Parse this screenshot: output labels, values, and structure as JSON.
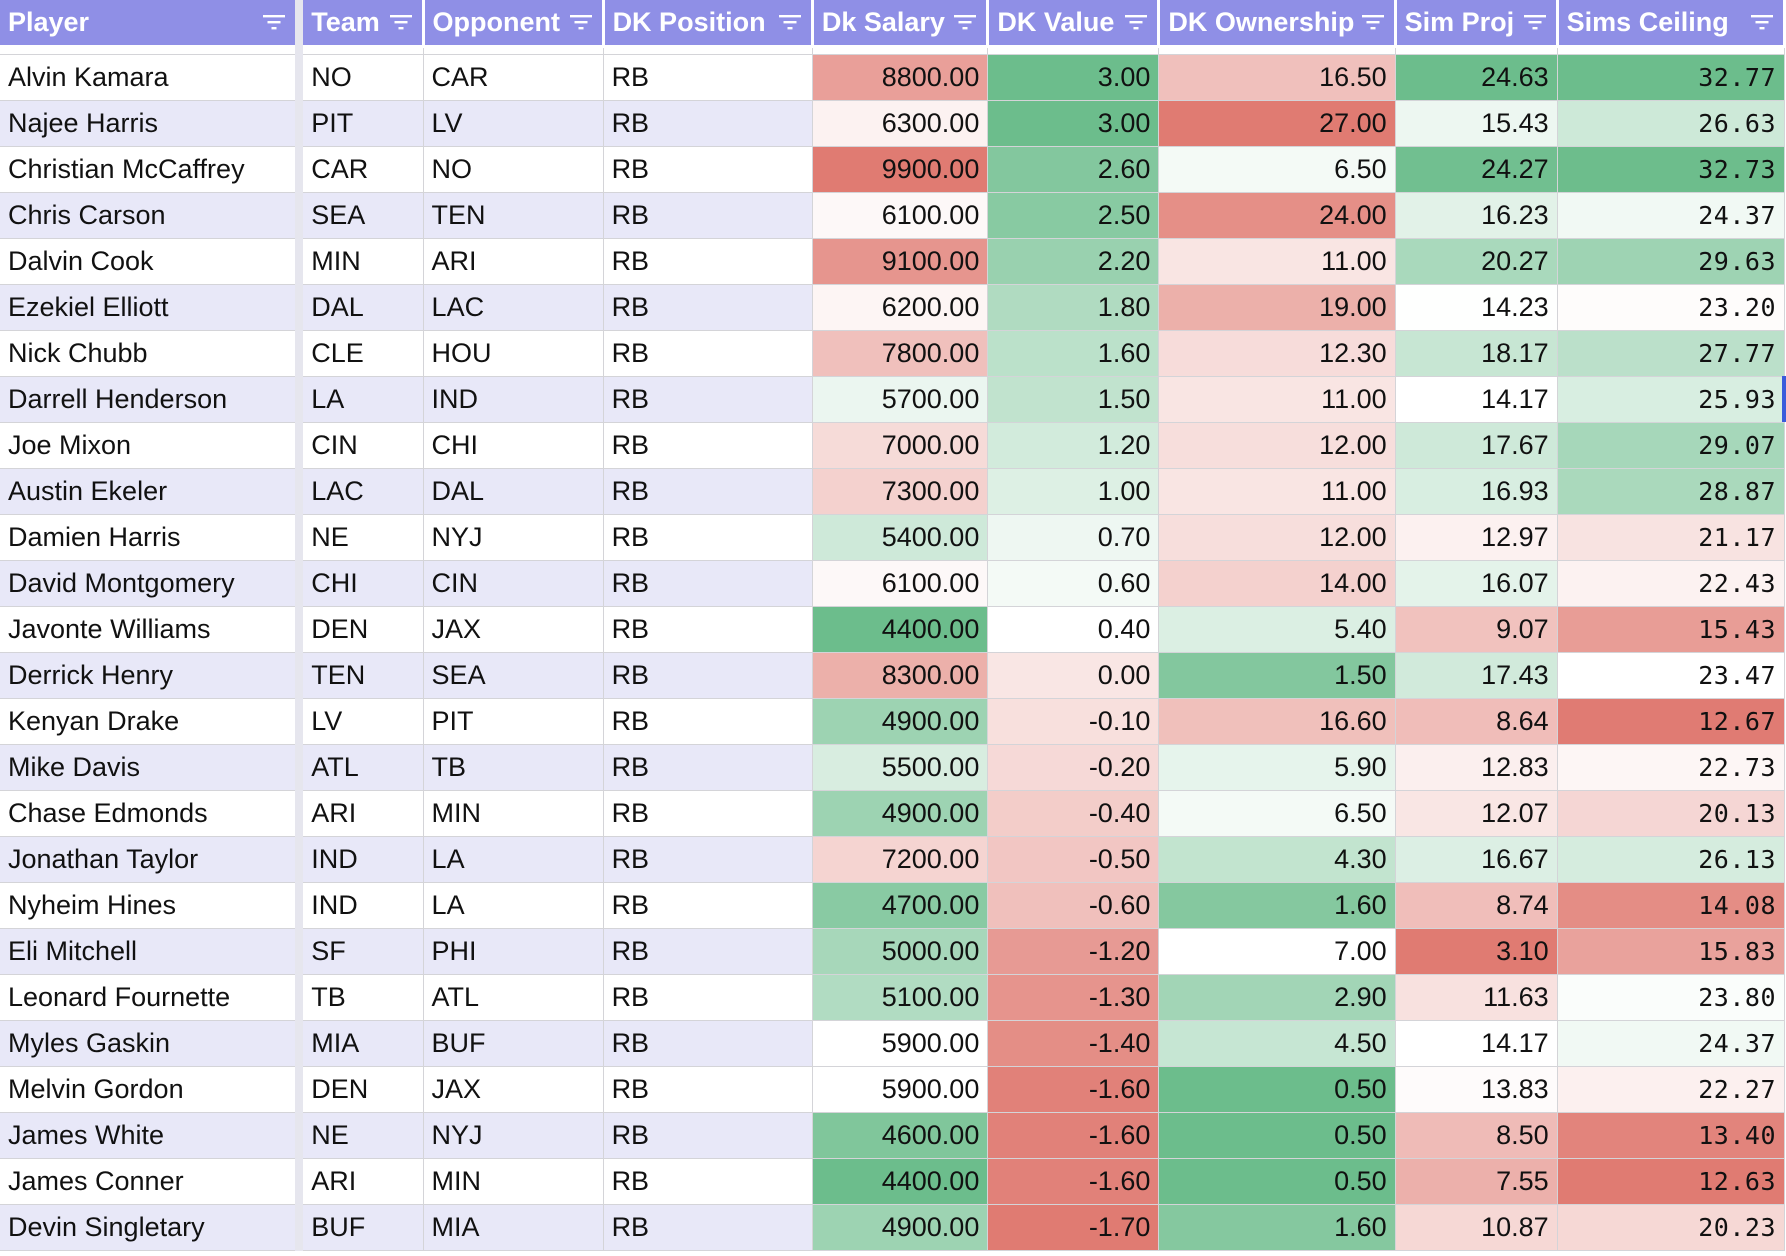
{
  "columns": [
    {
      "key": "player",
      "label": "Player"
    },
    {
      "key": "team",
      "label": "Team"
    },
    {
      "key": "opponent",
      "label": "Opponent"
    },
    {
      "key": "position",
      "label": "DK Position"
    },
    {
      "key": "salary",
      "label": "Dk Salary"
    },
    {
      "key": "value",
      "label": "DK Value"
    },
    {
      "key": "ownership",
      "label": "DK Ownership"
    },
    {
      "key": "sim_proj",
      "label": "Sim Proj"
    },
    {
      "key": "ceiling",
      "label": "Sims Ceiling"
    }
  ],
  "colors": {
    "header_bg": "#8f8fe6",
    "band_even": "#e8e8f8",
    "band_odd": "#ffffff",
    "scale_low": "#e07b72",
    "scale_mid": "#ffffff",
    "scale_high": "#6cbd8c",
    "filter_icon": "#ffffff"
  },
  "icons": {
    "filter": "filter-icon"
  },
  "rows": [
    {
      "player": "Alvin Kamara",
      "team": "NO",
      "opponent": "CAR",
      "position": "RB",
      "salary": "8800.00",
      "value": "3.00",
      "ownership": "16.50",
      "sim_proj": "24.63",
      "ceiling": "32.77"
    },
    {
      "player": "Najee Harris",
      "team": "PIT",
      "opponent": "LV",
      "position": "RB",
      "salary": "6300.00",
      "value": "3.00",
      "ownership": "27.00",
      "sim_proj": "15.43",
      "ceiling": "26.63"
    },
    {
      "player": "Christian McCaffrey",
      "team": "CAR",
      "opponent": "NO",
      "position": "RB",
      "salary": "9900.00",
      "value": "2.60",
      "ownership": "6.50",
      "sim_proj": "24.27",
      "ceiling": "32.73"
    },
    {
      "player": "Chris Carson",
      "team": "SEA",
      "opponent": "TEN",
      "position": "RB",
      "salary": "6100.00",
      "value": "2.50",
      "ownership": "24.00",
      "sim_proj": "16.23",
      "ceiling": "24.37"
    },
    {
      "player": "Dalvin Cook",
      "team": "MIN",
      "opponent": "ARI",
      "position": "RB",
      "salary": "9100.00",
      "value": "2.20",
      "ownership": "11.00",
      "sim_proj": "20.27",
      "ceiling": "29.63"
    },
    {
      "player": "Ezekiel Elliott",
      "team": "DAL",
      "opponent": "LAC",
      "position": "RB",
      "salary": "6200.00",
      "value": "1.80",
      "ownership": "19.00",
      "sim_proj": "14.23",
      "ceiling": "23.20"
    },
    {
      "player": "Nick Chubb",
      "team": "CLE",
      "opponent": "HOU",
      "position": "RB",
      "salary": "7800.00",
      "value": "1.60",
      "ownership": "12.30",
      "sim_proj": "18.17",
      "ceiling": "27.77"
    },
    {
      "player": "Darrell Henderson",
      "team": "LA",
      "opponent": "IND",
      "position": "RB",
      "salary": "5700.00",
      "value": "1.50",
      "ownership": "11.00",
      "sim_proj": "14.17",
      "ceiling": "25.93"
    },
    {
      "player": "Joe Mixon",
      "team": "CIN",
      "opponent": "CHI",
      "position": "RB",
      "salary": "7000.00",
      "value": "1.20",
      "ownership": "12.00",
      "sim_proj": "17.67",
      "ceiling": "29.07"
    },
    {
      "player": "Austin Ekeler",
      "team": "LAC",
      "opponent": "DAL",
      "position": "RB",
      "salary": "7300.00",
      "value": "1.00",
      "ownership": "11.00",
      "sim_proj": "16.93",
      "ceiling": "28.87"
    },
    {
      "player": "Damien Harris",
      "team": "NE",
      "opponent": "NYJ",
      "position": "RB",
      "salary": "5400.00",
      "value": "0.70",
      "ownership": "12.00",
      "sim_proj": "12.97",
      "ceiling": "21.17"
    },
    {
      "player": "David Montgomery",
      "team": "CHI",
      "opponent": "CIN",
      "position": "RB",
      "salary": "6100.00",
      "value": "0.60",
      "ownership": "14.00",
      "sim_proj": "16.07",
      "ceiling": "22.43"
    },
    {
      "player": "Javonte Williams",
      "team": "DEN",
      "opponent": "JAX",
      "position": "RB",
      "salary": "4400.00",
      "value": "0.40",
      "ownership": "5.40",
      "sim_proj": "9.07",
      "ceiling": "15.43"
    },
    {
      "player": "Derrick Henry",
      "team": "TEN",
      "opponent": "SEA",
      "position": "RB",
      "salary": "8300.00",
      "value": "0.00",
      "ownership": "1.50",
      "sim_proj": "17.43",
      "ceiling": "23.47"
    },
    {
      "player": "Kenyan Drake",
      "team": "LV",
      "opponent": "PIT",
      "position": "RB",
      "salary": "4900.00",
      "value": "-0.10",
      "ownership": "16.60",
      "sim_proj": "8.64",
      "ceiling": "12.67"
    },
    {
      "player": "Mike Davis",
      "team": "ATL",
      "opponent": "TB",
      "position": "RB",
      "salary": "5500.00",
      "value": "-0.20",
      "ownership": "5.90",
      "sim_proj": "12.83",
      "ceiling": "22.73"
    },
    {
      "player": "Chase Edmonds",
      "team": "ARI",
      "opponent": "MIN",
      "position": "RB",
      "salary": "4900.00",
      "value": "-0.40",
      "ownership": "6.50",
      "sim_proj": "12.07",
      "ceiling": "20.13"
    },
    {
      "player": "Jonathan Taylor",
      "team": "IND",
      "opponent": "LA",
      "position": "RB",
      "salary": "7200.00",
      "value": "-0.50",
      "ownership": "4.30",
      "sim_proj": "16.67",
      "ceiling": "26.13"
    },
    {
      "player": "Nyheim Hines",
      "team": "IND",
      "opponent": "LA",
      "position": "RB",
      "salary": "4700.00",
      "value": "-0.60",
      "ownership": "1.60",
      "sim_proj": "8.74",
      "ceiling": "14.08"
    },
    {
      "player": "Eli Mitchell",
      "team": "SF",
      "opponent": "PHI",
      "position": "RB",
      "salary": "5000.00",
      "value": "-1.20",
      "ownership": "7.00",
      "sim_proj": "3.10",
      "ceiling": "15.83"
    },
    {
      "player": "Leonard Fournette",
      "team": "TB",
      "opponent": "ATL",
      "position": "RB",
      "salary": "5100.00",
      "value": "-1.30",
      "ownership": "2.90",
      "sim_proj": "11.63",
      "ceiling": "23.80"
    },
    {
      "player": "Myles Gaskin",
      "team": "MIA",
      "opponent": "BUF",
      "position": "RB",
      "salary": "5900.00",
      "value": "-1.40",
      "ownership": "4.50",
      "sim_proj": "14.17",
      "ceiling": "24.37"
    },
    {
      "player": "Melvin Gordon",
      "team": "DEN",
      "opponent": "JAX",
      "position": "RB",
      "salary": "5900.00",
      "value": "-1.60",
      "ownership": "0.50",
      "sim_proj": "13.83",
      "ceiling": "22.27"
    },
    {
      "player": "James White",
      "team": "NE",
      "opponent": "NYJ",
      "position": "RB",
      "salary": "4600.00",
      "value": "-1.60",
      "ownership": "0.50",
      "sim_proj": "8.50",
      "ceiling": "13.40"
    },
    {
      "player": "James Conner",
      "team": "ARI",
      "opponent": "MIN",
      "position": "RB",
      "salary": "4400.00",
      "value": "-1.60",
      "ownership": "0.50",
      "sim_proj": "7.55",
      "ceiling": "12.63"
    },
    {
      "player": "Devin Singletary",
      "team": "BUF",
      "opponent": "MIA",
      "position": "RB",
      "salary": "4900.00",
      "value": "-1.70",
      "ownership": "1.60",
      "sim_proj": "10.87",
      "ceiling": "20.23"
    }
  ]
}
